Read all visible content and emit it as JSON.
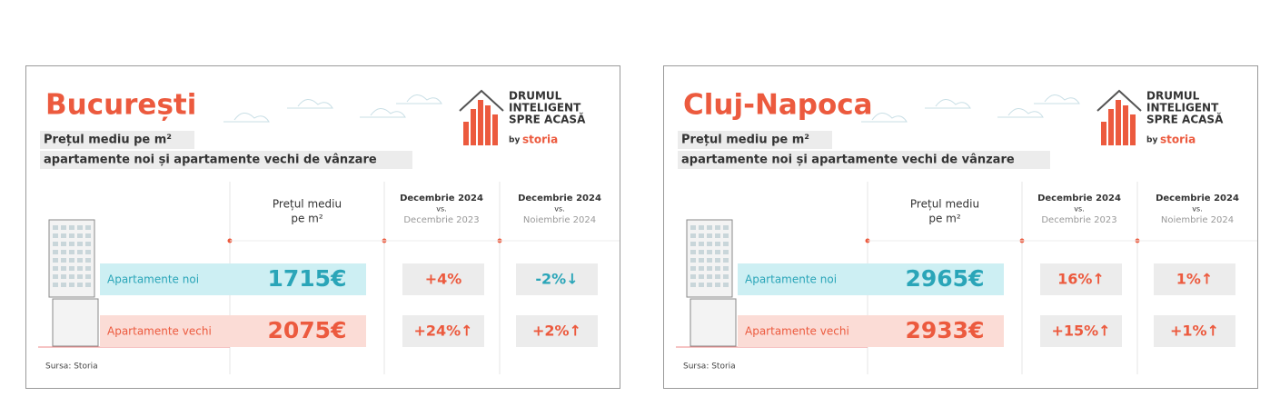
{
  "cards": [
    {
      "city": "București",
      "subtitle": [
        "Prețul mediu pe m²",
        "apartamente noi și apartamente vechi de vânzare"
      ],
      "logo": {
        "lines": [
          "DRUMUL",
          "INTELIGENT",
          "SPRE ACASĂ"
        ],
        "by": "by",
        "brand": "storia"
      },
      "headers": {
        "price": [
          "Prețul mediu",
          "pe m²"
        ],
        "yoy": [
          "Decembrie 2024",
          "vs.",
          "Decembrie 2023"
        ],
        "mom": [
          "Decembrie 2024",
          "vs.",
          "Noiembrie 2024"
        ]
      },
      "rows": [
        {
          "label": "Apartamente noi",
          "price": "1715€",
          "yoy": "+4%",
          "mom": "-2%↓"
        },
        {
          "label": "Apartamente vechi",
          "price": "2075€",
          "yoy": "+24%↑",
          "mom": "+2%↑"
        }
      ],
      "source": "Sursa: Storia"
    },
    {
      "city": "Cluj-Napoca",
      "subtitle": [
        "Prețul mediu pe m²",
        "apartamente noi și apartamente vechi de vânzare"
      ],
      "logo": {
        "lines": [
          "DRUMUL",
          "INTELIGENT",
          "SPRE ACASĂ"
        ],
        "by": "by",
        "brand": "storia"
      },
      "headers": {
        "price": [
          "Prețul mediu",
          "pe m²"
        ],
        "yoy": [
          "Decembrie 2024",
          "vs.",
          "Decembrie 2023"
        ],
        "mom": [
          "Decembrie 2024",
          "vs.",
          "Noiembrie 2024"
        ]
      },
      "rows": [
        {
          "label": "Apartamente noi",
          "price": "2965€",
          "yoy": "16%↑",
          "mom": "1%↑"
        },
        {
          "label": "Apartamente vechi",
          "price": "2933€",
          "yoy": "+15%↑",
          "mom": "+1%↑"
        }
      ],
      "source": "Sursa: Storia"
    }
  ]
}
